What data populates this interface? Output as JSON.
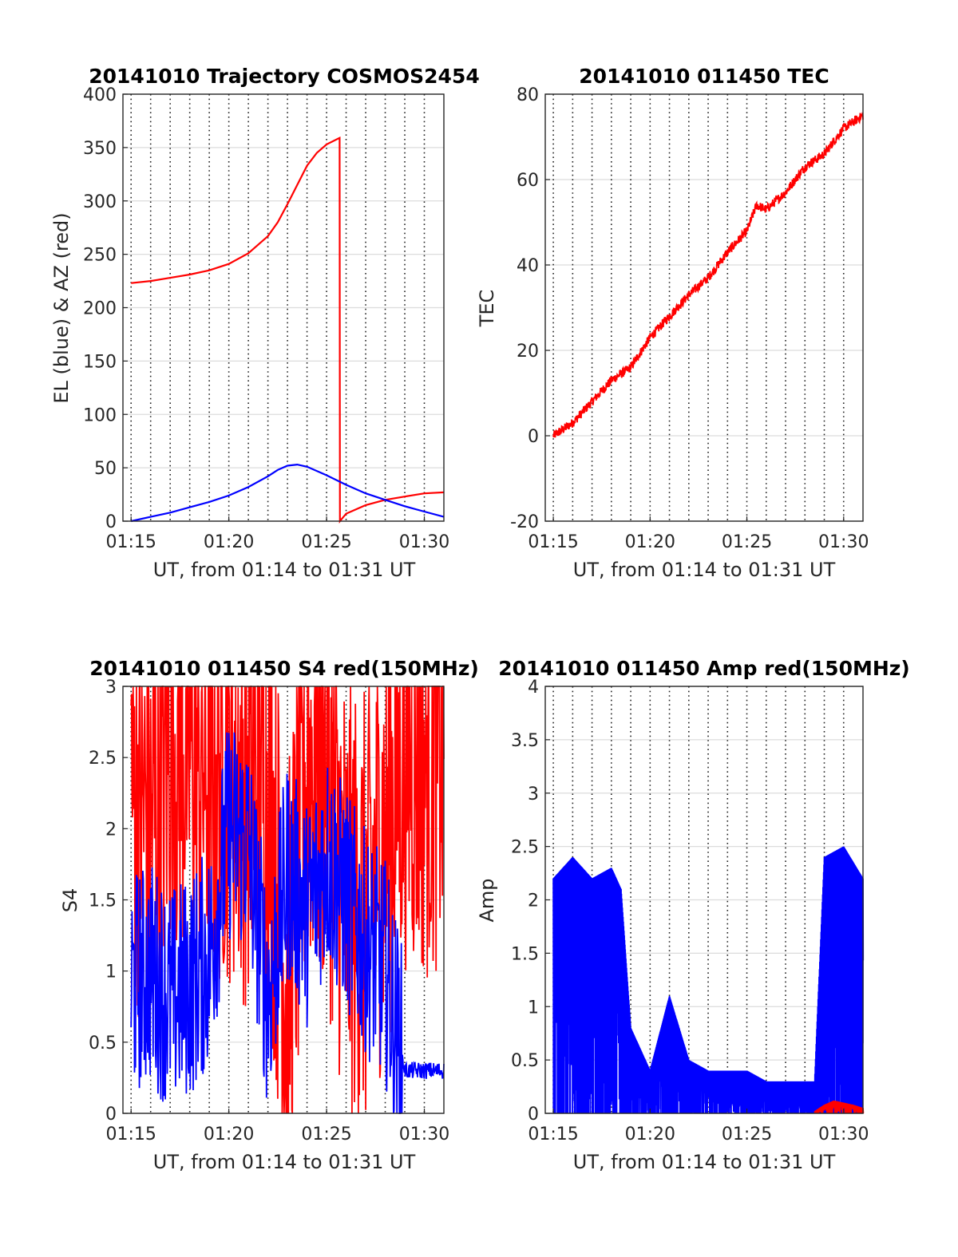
{
  "chart_data": [
    {
      "type": "line",
      "title": "20141010 Trajectory COSMOS2454",
      "xlabel": "UT, from 01:14 to 01:31 UT",
      "ylabel": "EL (blue) & AZ (red)",
      "xlim": [
        "01:14:35",
        "01:31:00"
      ],
      "ylim": [
        0,
        400
      ],
      "x_ticks": [
        "01:15",
        "01:20",
        "01:25",
        "01:30"
      ],
      "y_ticks": [
        "0",
        "50",
        "100",
        "150",
        "200",
        "250",
        "300",
        "350",
        "400"
      ],
      "grid": true,
      "series": [
        {
          "color": "#ff0000",
          "x": [
            "01:15:00",
            "01:16:00",
            "01:17:00",
            "01:18:00",
            "01:19:00",
            "01:20:00",
            "01:21:00",
            "01:22:00",
            "01:22:30",
            "01:23:00",
            "01:23:30",
            "01:24:00",
            "01:24:30",
            "01:25:00",
            "01:25:40",
            "01:25:41",
            "01:26:00",
            "01:27:00",
            "01:28:00",
            "01:29:00",
            "01:30:00",
            "01:31:00"
          ],
          "y": [
            223,
            225,
            228,
            231,
            235,
            241,
            251,
            267,
            280,
            297,
            315,
            333,
            345,
            353,
            359,
            0,
            7,
            15,
            20,
            23,
            26,
            27
          ]
        },
        {
          "color": "#0000ff",
          "x": [
            "01:15:00",
            "01:16:00",
            "01:17:00",
            "01:18:00",
            "01:19:00",
            "01:20:00",
            "01:21:00",
            "01:22:00",
            "01:22:30",
            "01:23:00",
            "01:23:30",
            "01:24:00",
            "01:25:00",
            "01:26:00",
            "01:27:00",
            "01:28:00",
            "01:29:00",
            "01:30:00",
            "01:31:00"
          ],
          "y": [
            0,
            4,
            8,
            13,
            18,
            24,
            32,
            42,
            48,
            52,
            53,
            51,
            43,
            34,
            26,
            20,
            14,
            9,
            4
          ]
        }
      ]
    },
    {
      "type": "line",
      "title": "20141010 011450 TEC",
      "xlabel": "UT, from 01:14 to 01:31 UT",
      "ylabel": "TEC",
      "xlim": [
        "01:14:35",
        "01:31:00"
      ],
      "ylim": [
        -20,
        80
      ],
      "x_ticks": [
        "01:15",
        "01:20",
        "01:25",
        "01:30"
      ],
      "y_ticks": [
        "-20",
        "0",
        "20",
        "40",
        "60",
        "80"
      ],
      "grid": true,
      "series": [
        {
          "color": "#ff0000",
          "x": [
            "01:15:00",
            "01:16:00",
            "01:17:00",
            "01:18:00",
            "01:19:00",
            "01:20:00",
            "01:21:00",
            "01:22:00",
            "01:23:00",
            "01:24:00",
            "01:25:00",
            "01:25:30",
            "01:26:00",
            "01:27:00",
            "01:28:00",
            "01:29:00",
            "01:30:00",
            "01:31:00"
          ],
          "y": [
            0,
            3,
            8,
            13,
            16,
            23,
            28,
            33,
            37,
            43,
            48,
            54,
            53,
            57,
            63,
            66,
            72,
            75
          ]
        }
      ]
    },
    {
      "type": "line",
      "title": "20141010 011450 S4 red(150MHz)",
      "xlabel": "UT, from 01:14 to 01:31 UT",
      "ylabel": "S4",
      "xlim": [
        "01:14:35",
        "01:31:00"
      ],
      "ylim": [
        0,
        3
      ],
      "x_ticks": [
        "01:15",
        "01:20",
        "01:25",
        "01:30"
      ],
      "y_ticks": [
        "0",
        "0.5",
        "1",
        "1.5",
        "2",
        "2.5",
        "3"
      ],
      "grid": true,
      "series": [
        {
          "color": "#ff0000",
          "x": [
            "01:15:00",
            "01:16:00",
            "01:17:00",
            "01:18:00",
            "01:19:00",
            "01:20:00",
            "01:21:00",
            "01:22:00",
            "01:23:00",
            "01:24:00",
            "01:25:00",
            "01:26:00",
            "01:27:00",
            "01:28:00",
            "01:29:00",
            "01:30:00",
            "01:31:00"
          ],
          "y": [
            2.4,
            2.0,
            2.6,
            2.6,
            2.4,
            2.5,
            2.3,
            2.4,
            0.8,
            2.5,
            2.4,
            1.5,
            1.4,
            2.0,
            2.6,
            2.5,
            2.6
          ]
        },
        {
          "color": "#0000ff",
          "x": [
            "01:15:00",
            "01:16:00",
            "01:17:00",
            "01:18:00",
            "01:19:00",
            "01:20:00",
            "01:21:00",
            "01:22:00",
            "01:23:00",
            "01:24:00",
            "01:25:00",
            "01:26:00",
            "01:27:00",
            "01:28:00",
            "01:29:00",
            "01:30:00",
            "01:31:00"
          ],
          "y": [
            0.9,
            1.0,
            0.8,
            0.9,
            1.1,
            2.0,
            1.9,
            0.8,
            1.7,
            1.4,
            1.8,
            1.5,
            1.2,
            1.0,
            0.3,
            0.3,
            0.3
          ]
        }
      ]
    },
    {
      "type": "line",
      "title": "20141010 011450 Amp red(150MHz)",
      "xlabel": "UT, from 01:14 to 01:31 UT",
      "ylabel": "Amp",
      "xlim": [
        "01:14:35",
        "01:31:00"
      ],
      "ylim": [
        0,
        4
      ],
      "x_ticks": [
        "01:15",
        "01:20",
        "01:25",
        "01:30"
      ],
      "y_ticks": [
        "0",
        "0.5",
        "1",
        "1.5",
        "2",
        "2.5",
        "3",
        "3.5",
        "4"
      ],
      "grid": true,
      "series": [
        {
          "color": "#0000ff",
          "x": [
            "01:15:00",
            "01:16:00",
            "01:17:00",
            "01:18:00",
            "01:18:30",
            "01:19:00",
            "01:20:00",
            "01:21:00",
            "01:22:00",
            "01:23:00",
            "01:24:00",
            "01:25:00",
            "01:26:00",
            "01:27:00",
            "01:28:00",
            "01:28:30",
            "01:29:00",
            "01:30:00",
            "01:31:00"
          ],
          "y": [
            2.2,
            2.4,
            2.2,
            2.3,
            2.1,
            0.8,
            0.4,
            1.1,
            0.5,
            0.4,
            0.4,
            0.4,
            0.3,
            0.3,
            0.3,
            0.3,
            2.4,
            2.5,
            2.2
          ]
        },
        {
          "color": "#ff0000",
          "x": [
            "01:28:30",
            "01:29:00",
            "01:29:30",
            "01:30:00",
            "01:30:30",
            "01:31:00"
          ],
          "y": [
            0.02,
            0.08,
            0.12,
            0.1,
            0.08,
            0.05
          ]
        }
      ]
    }
  ]
}
